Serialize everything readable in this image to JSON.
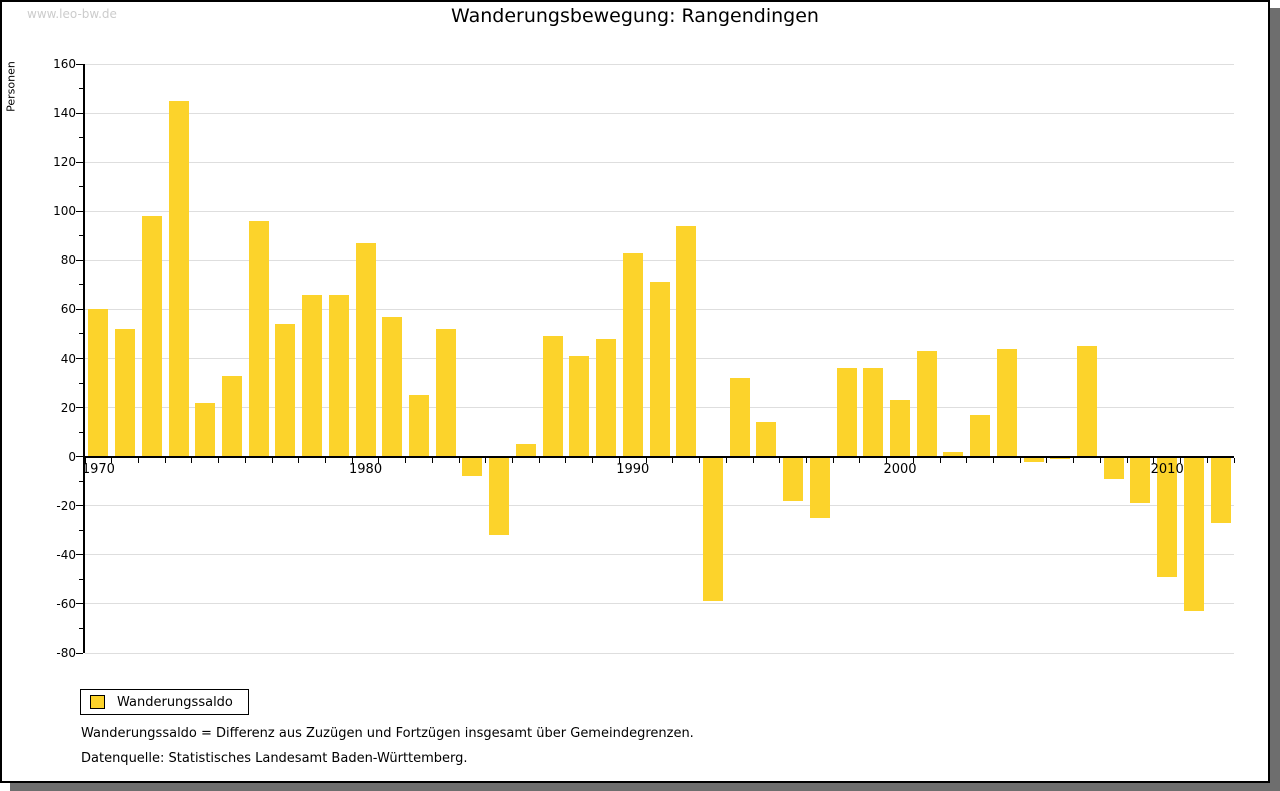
{
  "page": {
    "watermark": "www.leo-bw.de",
    "title": "Wanderungsbewegung: Rangendingen",
    "y_axis_title": "Personen",
    "legend": {
      "label": "Wanderungssaldo"
    },
    "footnotes": [
      "Wanderungssaldo = Differenz aus Zuzügen und Fortzügen insgesamt über Gemeindegrenzen.",
      "Datenquelle: Statistisches Landesamt Baden-Württemberg."
    ]
  },
  "colors": {
    "bar": "#fcd32b",
    "gridline": "#dedede",
    "axis": "#000000",
    "watermark": "#cccccc",
    "frame_shadow": "#6e6e6e"
  },
  "chart_data": {
    "type": "bar",
    "title": "Wanderungsbewegung: Rangendingen",
    "xlabel": "",
    "ylabel": "Personen",
    "series_name": "Wanderungssaldo",
    "years": [
      1970,
      1971,
      1972,
      1973,
      1974,
      1975,
      1976,
      1977,
      1978,
      1979,
      1980,
      1981,
      1982,
      1983,
      1984,
      1985,
      1986,
      1987,
      1988,
      1989,
      1990,
      1991,
      1992,
      1993,
      1994,
      1995,
      1996,
      1997,
      1998,
      1999,
      2000,
      2001,
      2002,
      2003,
      2004,
      2005,
      2006,
      2007,
      2008,
      2009,
      2010,
      2011,
      2012
    ],
    "values": [
      60,
      52,
      98,
      145,
      22,
      33,
      96,
      54,
      66,
      66,
      87,
      57,
      25,
      52,
      -8,
      -32,
      5,
      49,
      41,
      48,
      83,
      71,
      94,
      -59,
      32,
      14,
      -18,
      -25,
      36,
      36,
      23,
      43,
      2,
      17,
      44,
      -2,
      -1,
      45,
      -9,
      -19,
      -49,
      -63,
      -27
    ],
    "ylim": [
      -80,
      160
    ],
    "y_ticks": [
      160,
      140,
      120,
      100,
      80,
      60,
      40,
      20,
      0,
      -20,
      -40,
      -60,
      -80
    ],
    "y_tick_step": 20,
    "y_minor_step": 10,
    "x_labeled_ticks": [
      1970,
      1980,
      1990,
      2000,
      2010
    ],
    "grid": true,
    "bar_color": "#fcd32b",
    "legend_position": "bottom-left"
  }
}
